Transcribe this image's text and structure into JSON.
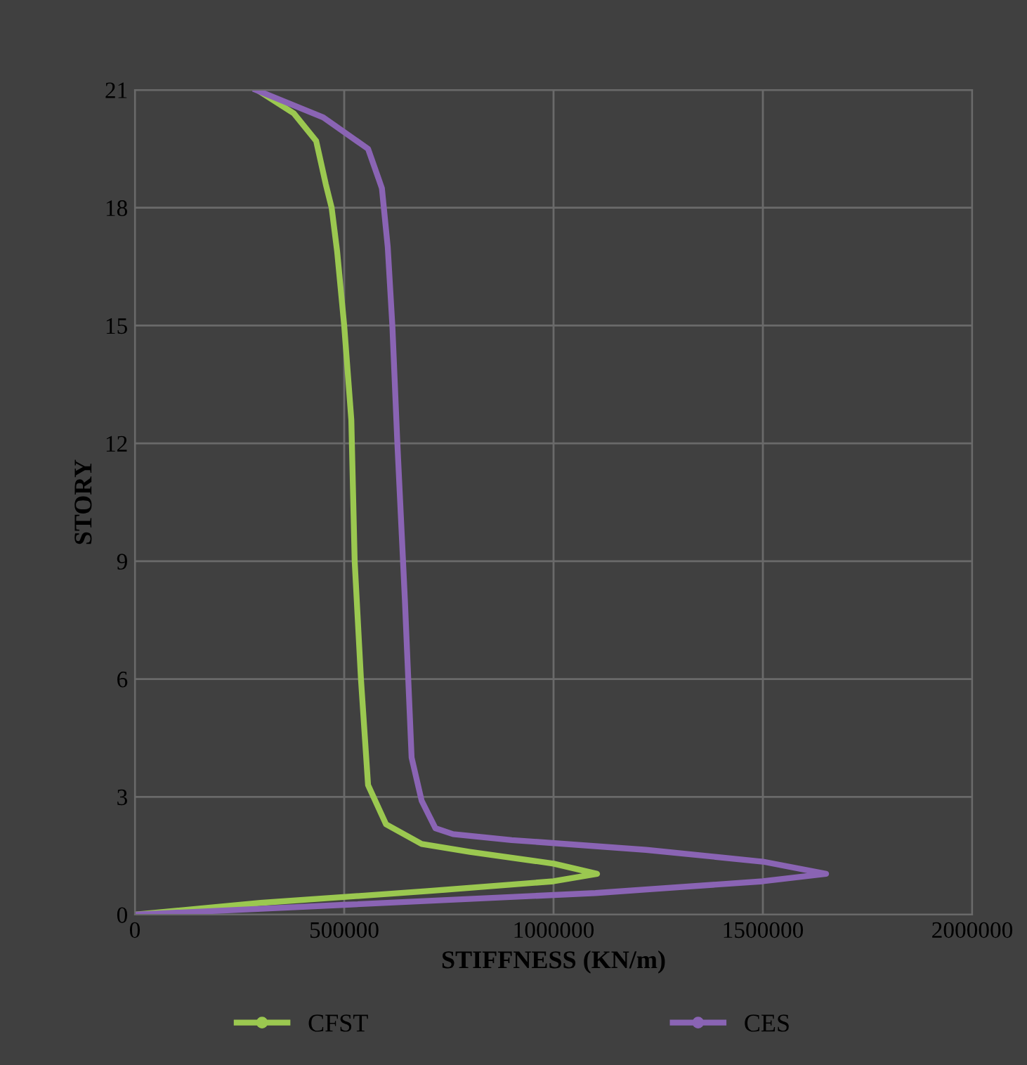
{
  "chart_data": {
    "type": "line",
    "xlabel": "STIFFNESS (KN/m)",
    "ylabel": "STORY",
    "series": [
      {
        "name": "CFST",
        "color": "#9bc850",
        "x": [
          0,
          300000,
          700000,
          1000000,
          1104000,
          1000000,
          800000,
          685000,
          600000,
          557000,
          540000,
          525000,
          517000,
          500000,
          483000,
          470000,
          456000,
          433000,
          380000,
          292000
        ],
        "values": [
          0,
          0.3,
          0.6,
          0.85,
          1.04,
          1.3,
          1.6,
          1.8,
          2.3,
          3.3,
          6,
          9,
          12.6,
          15,
          16.9,
          18,
          18.6,
          19.7,
          20.4,
          21
        ]
      },
      {
        "name": "CES",
        "color": "#8a64b4",
        "x": [
          0,
          500000,
          1100000,
          1500000,
          1651000,
          1500000,
          1221000,
          900000,
          760000,
          718000,
          685000,
          661000,
          645000,
          627000,
          615000,
          604000,
          590000,
          557000,
          450000,
          289000
        ],
        "values": [
          0,
          0.25,
          0.55,
          0.85,
          1.04,
          1.35,
          1.65,
          1.9,
          2.05,
          2.2,
          2.9,
          4,
          8,
          12,
          15,
          17,
          18.5,
          19.5,
          20.3,
          21
        ]
      }
    ],
    "xlim": [
      0,
      2000000
    ],
    "xticks": [
      0,
      500000,
      1000000,
      1500000,
      2000000
    ],
    "ylim": [
      0,
      21
    ],
    "yticks": [
      0,
      3,
      6,
      9,
      12,
      15,
      18,
      21
    ],
    "grid": true,
    "legend": "bottom",
    "marker": "none",
    "line_style": "solid"
  }
}
